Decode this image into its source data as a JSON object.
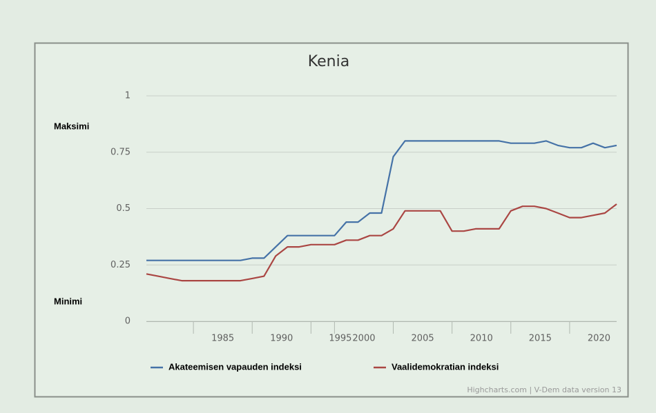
{
  "chart_data": {
    "type": "line",
    "title": "Kenia",
    "categories": [
      null,
      null,
      null,
      null,
      null,
      null,
      "1985",
      null,
      null,
      null,
      null,
      "1990",
      null,
      null,
      null,
      null,
      "1995",
      null,
      "2000",
      null,
      null,
      null,
      null,
      "2005",
      null,
      null,
      null,
      null,
      "2010",
      null,
      null,
      null,
      null,
      "2015",
      null,
      null,
      null,
      null,
      "2020",
      null,
      null
    ],
    "series": [
      {
        "name": "Akateemisen vapauden indeksi",
        "color": "#4572a7",
        "values": [
          0.27,
          0.27,
          0.27,
          0.27,
          0.27,
          0.27,
          0.27,
          0.27,
          0.27,
          0.28,
          0.28,
          0.33,
          0.38,
          0.38,
          0.38,
          0.38,
          0.38,
          0.44,
          0.44,
          0.48,
          0.48,
          0.73,
          0.8,
          0.8,
          0.8,
          0.8,
          0.8,
          0.8,
          0.8,
          0.8,
          0.8,
          0.79,
          0.79,
          0.79,
          0.8,
          0.78,
          0.77,
          0.77,
          0.79,
          0.77,
          0.78
        ]
      },
      {
        "name": "Vaalidemokratian indeksi",
        "color": "#aa4643",
        "values": [
          0.21,
          0.2,
          0.19,
          0.18,
          0.18,
          0.18,
          0.18,
          0.18,
          0.18,
          0.19,
          0.2,
          0.29,
          0.33,
          0.33,
          0.34,
          0.34,
          0.34,
          0.36,
          0.36,
          0.38,
          0.38,
          0.41,
          0.49,
          0.49,
          0.49,
          0.49,
          0.4,
          0.4,
          0.41,
          0.41,
          0.41,
          0.49,
          0.51,
          0.51,
          0.5,
          0.48,
          0.46,
          0.46,
          0.47,
          0.48,
          0.52
        ]
      }
    ],
    "ylim": [
      0,
      1
    ],
    "yticks": [
      0,
      0.25,
      0.5,
      0.75,
      1
    ],
    "grid": true,
    "annotations": [
      "Maksimi",
      "Minimi"
    ],
    "credits": "Highcharts.com | V-Dem data version 13"
  }
}
